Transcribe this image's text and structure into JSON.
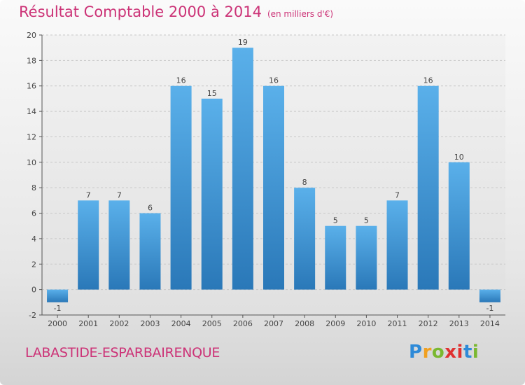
{
  "title": "Résultat Comptable 2000 à 2014",
  "subtitle": "(en milliers d'€)",
  "commune": "LABASTIDE-ESPARBAIRENQUE",
  "logo": {
    "letters": [
      "P",
      "r",
      "o",
      "x",
      "i",
      "t",
      "i"
    ],
    "colors": [
      "#2e8ad8",
      "#f0a020",
      "#7ab830",
      "#e03030",
      "#e03030",
      "#2e8ad8",
      "#7ab830"
    ]
  },
  "colors": {
    "bar_top": "#5ab0ea",
    "bar_bottom": "#2a78b8",
    "title": "#cc3377",
    "grid": "#c8c8c8"
  },
  "chart_data": {
    "type": "bar",
    "title": "Résultat Comptable 2000 à 2014",
    "subtitle": "(en milliers d'€)",
    "categories": [
      "2000",
      "2001",
      "2002",
      "2003",
      "2004",
      "2005",
      "2006",
      "2007",
      "2008",
      "2009",
      "2010",
      "2011",
      "2012",
      "2013",
      "2014"
    ],
    "values": [
      -1,
      7,
      7,
      6,
      16,
      15,
      19,
      16,
      8,
      5,
      5,
      7,
      16,
      10,
      -1
    ],
    "value_labels": [
      "-1",
      "7",
      "7",
      "6",
      "16",
      "15",
      "19",
      "16",
      "8",
      "5",
      "5",
      "7",
      "16",
      "10",
      "-1"
    ],
    "ylim": [
      -2,
      20
    ],
    "yticks": [
      -2,
      0,
      2,
      4,
      6,
      8,
      10,
      12,
      14,
      16,
      18,
      20
    ],
    "ytick_labels": [
      "-2",
      "0",
      "2",
      "4",
      "6",
      "8",
      "10",
      "12",
      "14",
      "16",
      "18",
      "20"
    ],
    "grid": true,
    "legend": "none"
  }
}
